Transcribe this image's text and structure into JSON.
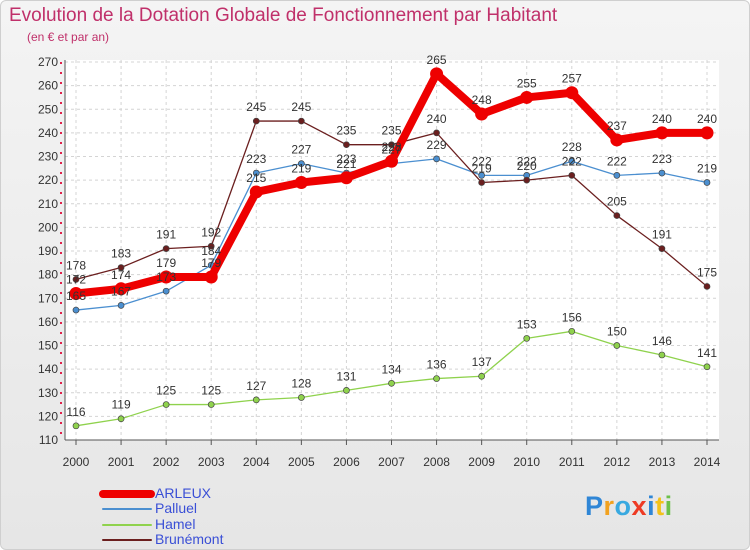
{
  "chart_data": {
    "type": "line",
    "title": "Evolution de la Dotation Globale de Fonctionnement par Habitant",
    "subtitle": "(en € et par an)",
    "categories": [
      "2000",
      "2001",
      "2002",
      "2003",
      "2004",
      "2005",
      "2006",
      "2007",
      "2008",
      "2009",
      "2010",
      "2011",
      "2012",
      "2013",
      "2014"
    ],
    "ylim": [
      110,
      270
    ],
    "yticks": [
      110,
      120,
      130,
      140,
      150,
      160,
      170,
      180,
      190,
      200,
      210,
      220,
      230,
      240,
      250,
      260,
      270
    ],
    "grid": true,
    "legend_position": "bottom-left",
    "series": [
      {
        "name": "ARLEUX",
        "color": "#ee0000",
        "values": [
          172,
          174,
          179,
          179,
          215,
          219,
          221,
          228,
          265,
          248,
          255,
          257,
          237,
          240,
          240
        ]
      },
      {
        "name": "Palluel",
        "color": "#4b8fd0",
        "values": [
          165,
          167,
          173,
          184,
          223,
          227,
          223,
          227,
          229,
          222,
          222,
          228,
          222,
          223,
          219
        ]
      },
      {
        "name": "Hamel",
        "color": "#8fd24d",
        "values": [
          116,
          119,
          125,
          125,
          127,
          128,
          131,
          134,
          136,
          137,
          153,
          156,
          150,
          146,
          141
        ]
      },
      {
        "name": "Brunémont",
        "color": "#6b1f1f",
        "values": [
          178,
          183,
          191,
          192,
          245,
          245,
          235,
          235,
          240,
          219,
          220,
          222,
          205,
          191,
          175
        ]
      }
    ]
  },
  "logo": {
    "letters": [
      "P",
      "r",
      "o",
      "x",
      "i",
      "t",
      "i"
    ],
    "colors": [
      "#2f86d6",
      "#f2a220",
      "#39a9e0",
      "#ee3b24",
      "#2f86d6",
      "#f2c21b",
      "#6cc04a"
    ]
  }
}
